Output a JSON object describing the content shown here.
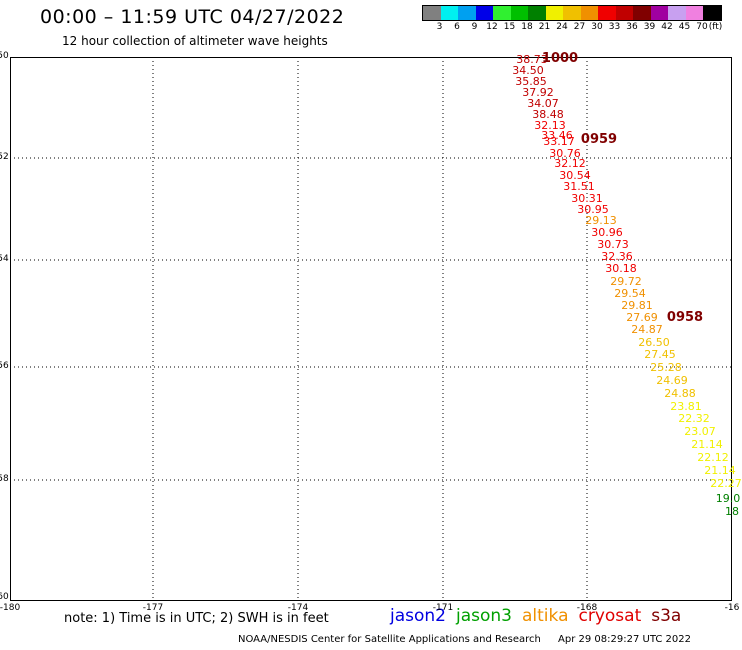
{
  "header": {
    "title": "00:00 – 11:59 UTC 04/27/2022",
    "subtitle": "12 hour collection of altimeter wave heights"
  },
  "colorbar": {
    "colors": [
      "#808080",
      "#00f0f0",
      "#00a0f0",
      "#0000e8",
      "#30f030",
      "#00c000",
      "#008000",
      "#f0f000",
      "#f0c000",
      "#f09000",
      "#f00000",
      "#c00000",
      "#800000",
      "#a000a0",
      "#c8a0f0",
      "#f080e0",
      "#000000"
    ],
    "labels": [
      "3",
      "6",
      "9",
      "12",
      "15",
      "18",
      "21",
      "24",
      "27",
      "30",
      "33",
      "36",
      "39",
      "42",
      "45",
      "70",
      "(ft)"
    ]
  },
  "axes": {
    "lon_labels": [
      "-180",
      "-177",
      "-174",
      "-171",
      "-168",
      "-16"
    ],
    "lat_labels": [
      "-50",
      "-52",
      "-54",
      "-56",
      "-58",
      "-60"
    ]
  },
  "track_times": [
    "1000",
    "0959",
    "0958"
  ],
  "wave_heights": [
    {
      "v": "38.73",
      "c": "#c00000"
    },
    {
      "v": "34.50",
      "c": "#c00000"
    },
    {
      "v": "35.85",
      "c": "#c00000"
    },
    {
      "v": "37.92",
      "c": "#c00000"
    },
    {
      "v": "34.07",
      "c": "#c00000"
    },
    {
      "v": "38.48",
      "c": "#c00000"
    },
    {
      "v": "32.13",
      "c": "#f00000"
    },
    {
      "v": "33.46",
      "c": "#f00000"
    },
    {
      "v": "33.17",
      "c": "#f00000"
    },
    {
      "v": "30.76",
      "c": "#f00000"
    },
    {
      "v": "32.12",
      "c": "#f00000"
    },
    {
      "v": "30.54",
      "c": "#f00000"
    },
    {
      "v": "31.51",
      "c": "#f00000"
    },
    {
      "v": "30.31",
      "c": "#f00000"
    },
    {
      "v": "30.95",
      "c": "#f00000"
    },
    {
      "v": "29.13",
      "c": "#f09000"
    },
    {
      "v": "30.96",
      "c": "#f00000"
    },
    {
      "v": "30.73",
      "c": "#f00000"
    },
    {
      "v": "32.36",
      "c": "#f00000"
    },
    {
      "v": "30.18",
      "c": "#f00000"
    },
    {
      "v": "29.72",
      "c": "#f09000"
    },
    {
      "v": "29.54",
      "c": "#f09000"
    },
    {
      "v": "29.81",
      "c": "#f09000"
    },
    {
      "v": "27.69",
      "c": "#f09000"
    },
    {
      "v": "24.87",
      "c": "#f09000"
    },
    {
      "v": "26.50",
      "c": "#f0c000"
    },
    {
      "v": "27.45",
      "c": "#f0c000"
    },
    {
      "v": "25.28",
      "c": "#f0c000"
    },
    {
      "v": "24.69",
      "c": "#f0c000"
    },
    {
      "v": "24.88",
      "c": "#f0c000"
    },
    {
      "v": "23.81",
      "c": "#f0f000"
    },
    {
      "v": "22.32",
      "c": "#f0f000"
    },
    {
      "v": "23.07",
      "c": "#f0f000"
    },
    {
      "v": "21.14",
      "c": "#f0f000"
    },
    {
      "v": "22.12",
      "c": "#f0f000"
    },
    {
      "v": "21.14",
      "c": "#f0f000"
    },
    {
      "v": "22.27",
      "c": "#f0f000"
    },
    {
      "v": "19.0",
      "c": "#008000"
    },
    {
      "v": "18",
      "c": "#008000"
    }
  ],
  "note": "note: 1) Time is in UTC; 2) SWH is in feet",
  "satellites": [
    {
      "name": "jason2",
      "color": "#0000e0"
    },
    {
      "name": "jason3",
      "color": "#00a000"
    },
    {
      "name": "altika",
      "color": "#f09000"
    },
    {
      "name": "cryosat",
      "color": "#e00000"
    },
    {
      "name": "s3a",
      "color": "#800000"
    }
  ],
  "footer": {
    "credit": "NOAA/NESDIS Center for Satellite Applications and Research",
    "timestamp": "Apr 29 08:29:27 UTC 2022"
  }
}
